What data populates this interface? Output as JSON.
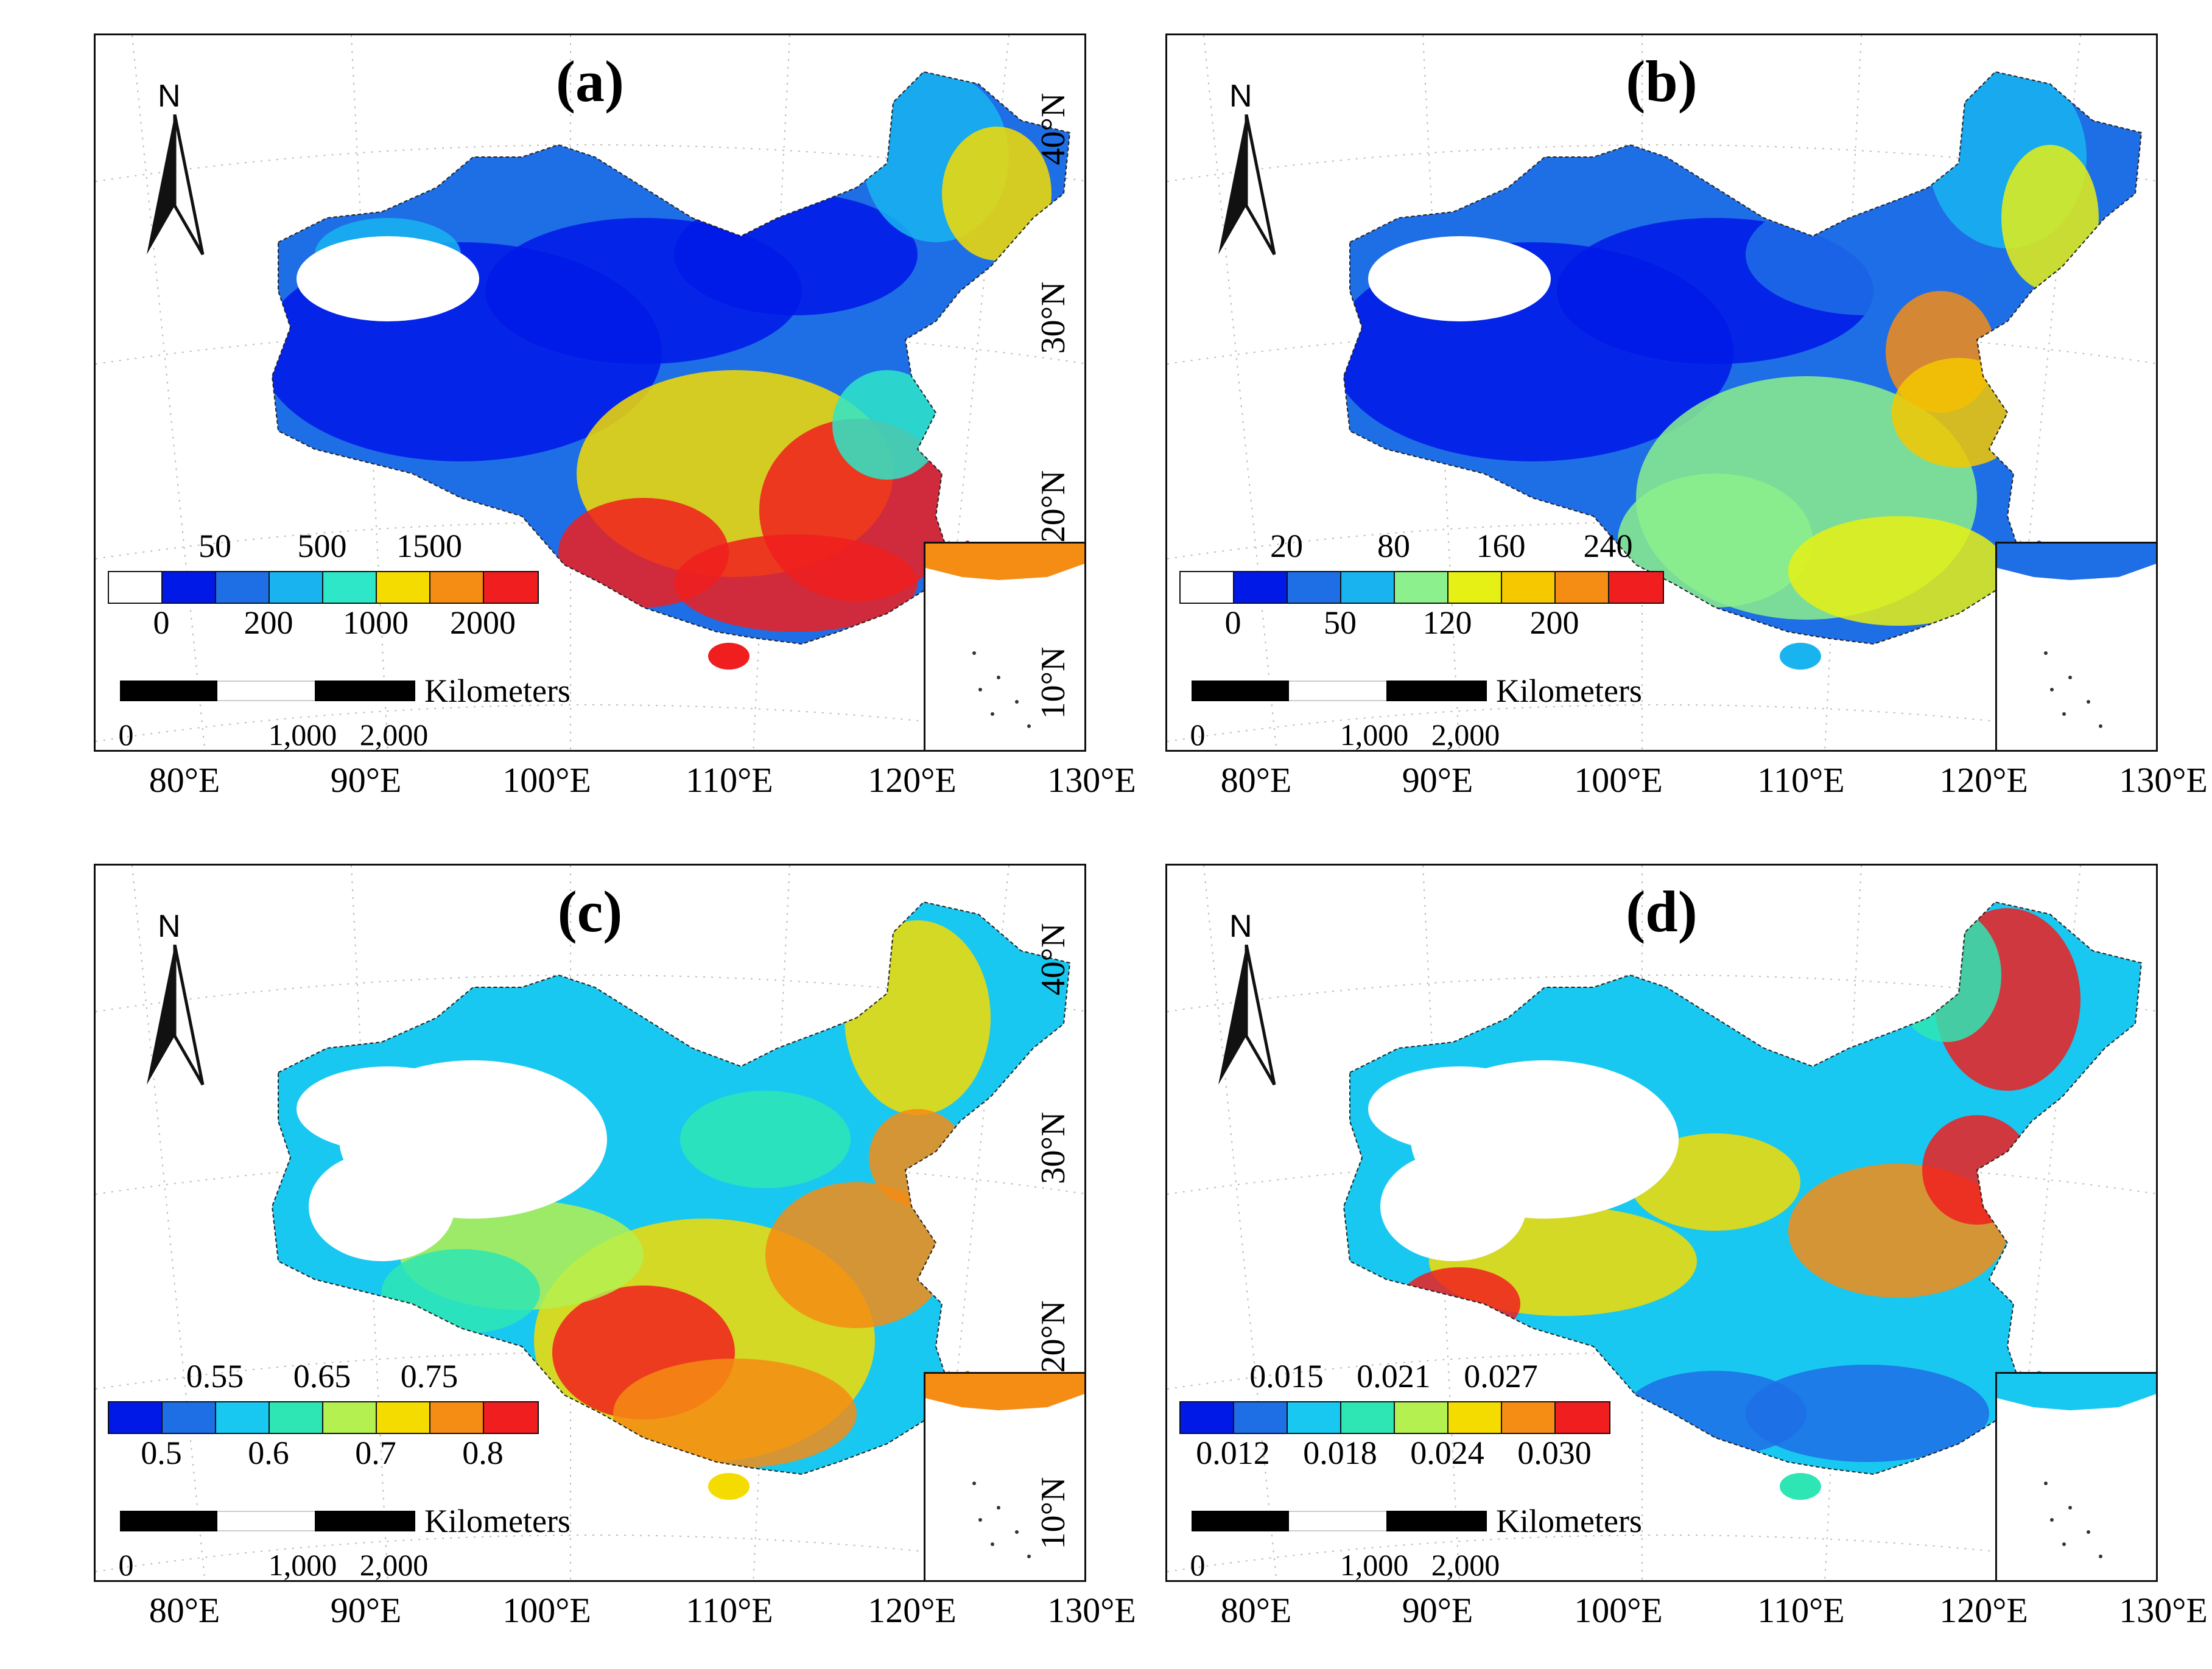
{
  "axis": {
    "lat_labels": [
      "40°N",
      "30°N",
      "20°N",
      "10°N"
    ],
    "lon_labels": [
      "80°E",
      "90°E",
      "100°E",
      "110°E",
      "120°E",
      "130°E"
    ]
  },
  "north_arrow": {
    "label": "N",
    "icon": "north-arrow-icon"
  },
  "scale_bar": {
    "unit": "Kilometers",
    "labels": [
      "0",
      "1,000",
      "2,000"
    ]
  },
  "panels": [
    {
      "id": "a",
      "title": "(a)",
      "legend": {
        "colors": [
          "#ffffff",
          "#0019e6",
          "#1e6ee6",
          "#19b4f0",
          "#2ee6c8",
          "#f5dc00",
          "#f58c14",
          "#f01e1e"
        ],
        "top_labels": [
          "50",
          "500",
          "1500"
        ],
        "bottom_labels": [
          "0",
          "200",
          "1000",
          "2000"
        ]
      }
    },
    {
      "id": "b",
      "title": "(b)",
      "legend": {
        "colors": [
          "#ffffff",
          "#0019e6",
          "#1e6ee6",
          "#19b4f0",
          "#8cf08c",
          "#e6f014",
          "#f5c800",
          "#f58c14",
          "#f01e1e"
        ],
        "top_labels": [
          "20",
          "80",
          "160",
          "240"
        ],
        "bottom_labels": [
          "0",
          "50",
          "120",
          "200"
        ]
      }
    },
    {
      "id": "c",
      "title": "(c)",
      "legend": {
        "colors": [
          "#0019e6",
          "#1e6ee6",
          "#19c8f0",
          "#2ee6b4",
          "#b4f050",
          "#f5dc00",
          "#f58c14",
          "#f01e1e"
        ],
        "top_labels": [
          "0.55",
          "0.65",
          "0.75"
        ],
        "bottom_labels": [
          "0.5",
          "0.6",
          "0.7",
          "0.8"
        ]
      }
    },
    {
      "id": "d",
      "title": "(d)",
      "legend": {
        "colors": [
          "#0019e6",
          "#1e6ee6",
          "#19c8f0",
          "#2ee6b4",
          "#b4f050",
          "#f5dc00",
          "#f58c14",
          "#f01e1e"
        ],
        "top_labels": [
          "0.015",
          "0.021",
          "0.027"
        ],
        "bottom_labels": [
          "0.012",
          "0.018",
          "0.024",
          "0.030"
        ]
      }
    }
  ]
}
